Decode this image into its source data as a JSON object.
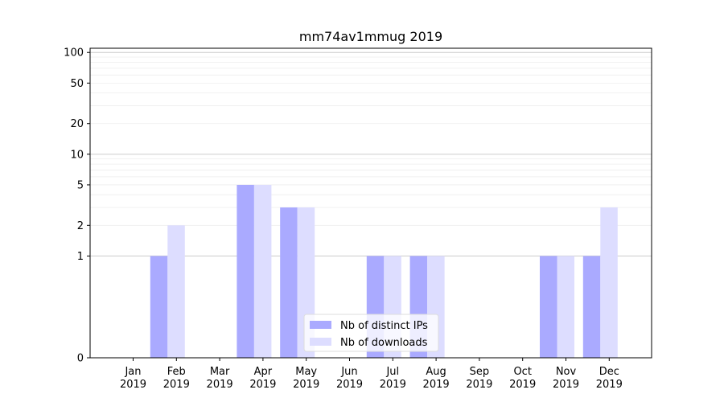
{
  "chart_data": {
    "type": "bar",
    "title": "mm74av1mmug 2019",
    "xlabel": "",
    "ylabel": "",
    "y_scale": "symlog",
    "ylim": [
      0,
      110
    ],
    "y_ticks": [
      0,
      1,
      2,
      5,
      10,
      20,
      50,
      100
    ],
    "grid": "horizontal",
    "legend_position": "bottom-center",
    "categories": [
      [
        "Jan",
        "2019"
      ],
      [
        "Feb",
        "2019"
      ],
      [
        "Mar",
        "2019"
      ],
      [
        "Apr",
        "2019"
      ],
      [
        "May",
        "2019"
      ],
      [
        "Jun",
        "2019"
      ],
      [
        "Jul",
        "2019"
      ],
      [
        "Aug",
        "2019"
      ],
      [
        "Sep",
        "2019"
      ],
      [
        "Oct",
        "2019"
      ],
      [
        "Nov",
        "2019"
      ],
      [
        "Dec",
        "2019"
      ]
    ],
    "series": [
      {
        "name": "Nb of distinct IPs",
        "color": "#aaaaff",
        "values": [
          0,
          1,
          0,
          5,
          3,
          0,
          1,
          1,
          0,
          0,
          1,
          1
        ]
      },
      {
        "name": "Nb of downloads",
        "color": "#ddddff",
        "values": [
          0,
          2,
          0,
          5,
          3,
          0,
          1,
          1,
          0,
          0,
          1,
          3
        ]
      }
    ]
  }
}
